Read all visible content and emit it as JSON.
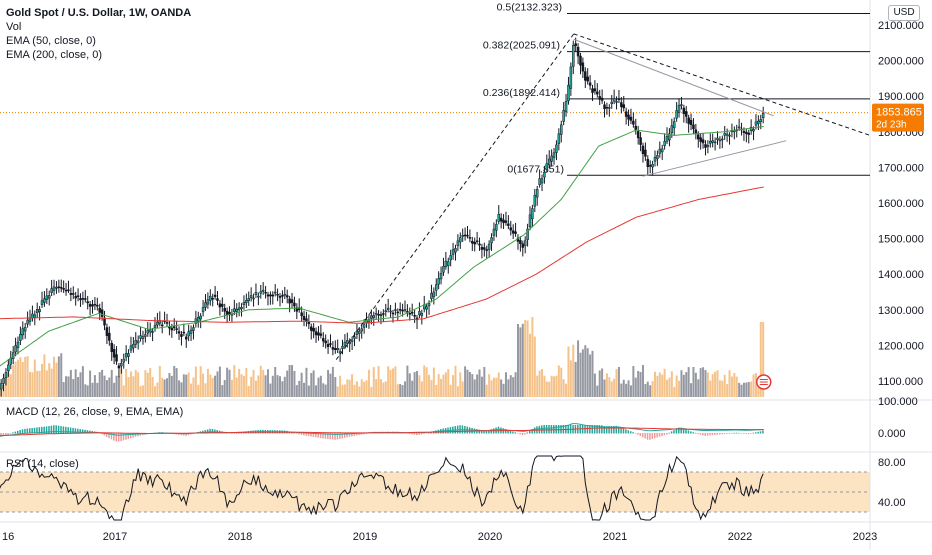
{
  "legend": {
    "title": "Gold Spot / U.S. Dollar, 1W, OANDA",
    "vol": "Vol",
    "ema50": "EMA (50, close, 0)",
    "ema200": "EMA (200, close, 0)"
  },
  "currency": "USD",
  "price_badge": {
    "price": "1853.865",
    "countdown": "2d 23h"
  },
  "macd_label": "MACD (12, 26, close, 9, EMA, EMA)",
  "rsi_label": "RSI (14, close)",
  "colors": {
    "up": "#26a69a",
    "down": "#131722",
    "ema50": "#43a047",
    "ema200": "#e53935",
    "vol_up": "#f5c28a",
    "vol_down": "#9598a1",
    "rsi_band": "#fbd7a6",
    "badge": "#f57c00",
    "macd": "#26a69a",
    "signal": "#e53935"
  },
  "chart_data": {
    "type": "candlestick",
    "title": "Gold Spot / U.S. Dollar, 1W, OANDA",
    "x_tick_labels": [
      "16",
      "2017",
      "2018",
      "2019",
      "2020",
      "2021",
      "2022",
      "2023"
    ],
    "y_ticks": [
      "2100.000",
      "2000.000",
      "1900.000",
      "1800.000",
      "1700.000",
      "1600.000",
      "1500.000",
      "1400.000",
      "1300.000",
      "1200.000",
      "1100.000"
    ],
    "ylim": [
      1045,
      2140
    ],
    "fib_levels": [
      {
        "label": "0.5(2132.323)",
        "value": 2132.323
      },
      {
        "label": "0.382(2025.091)",
        "value": 2025.091
      },
      {
        "label": "0.236(1892.414)",
        "value": 1892.414
      },
      {
        "label": "0(1677.851)",
        "value": 1677.851
      }
    ],
    "price_path": [
      [
        2016.0,
        1080
      ],
      [
        2016.2,
        1250
      ],
      [
        2016.45,
        1365
      ],
      [
        2016.6,
        1340
      ],
      [
        2016.8,
        1305
      ],
      [
        2016.95,
        1140
      ],
      [
        2017.1,
        1210
      ],
      [
        2017.3,
        1265
      ],
      [
        2017.5,
        1225
      ],
      [
        2017.7,
        1340
      ],
      [
        2017.85,
        1285
      ],
      [
        2018.0,
        1330
      ],
      [
        2018.1,
        1350
      ],
      [
        2018.3,
        1340
      ],
      [
        2018.45,
        1270
      ],
      [
        2018.6,
        1210
      ],
      [
        2018.7,
        1180
      ],
      [
        2018.85,
        1230
      ],
      [
        2019.0,
        1290
      ],
      [
        2019.2,
        1300
      ],
      [
        2019.35,
        1280
      ],
      [
        2019.45,
        1330
      ],
      [
        2019.55,
        1410
      ],
      [
        2019.7,
        1510
      ],
      [
        2019.9,
        1470
      ],
      [
        2020.0,
        1560
      ],
      [
        2020.2,
        1480
      ],
      [
        2020.3,
        1640
      ],
      [
        2020.45,
        1750
      ],
      [
        2020.55,
        1900
      ],
      [
        2020.6,
        2060
      ],
      [
        2020.7,
        1940
      ],
      [
        2020.85,
        1870
      ],
      [
        2020.95,
        1890
      ],
      [
        2021.1,
        1800
      ],
      [
        2021.2,
        1700
      ],
      [
        2021.35,
        1780
      ],
      [
        2021.45,
        1880
      ],
      [
        2021.55,
        1810
      ],
      [
        2021.65,
        1760
      ],
      [
        2021.8,
        1790
      ],
      [
        2021.9,
        1810
      ],
      [
        2022.0,
        1800
      ],
      [
        2022.1,
        1840
      ],
      [
        2022.12,
        1853.865
      ]
    ],
    "ema50_path": [
      [
        2016.0,
        1140
      ],
      [
        2016.4,
        1240
      ],
      [
        2016.8,
        1290
      ],
      [
        2017.2,
        1245
      ],
      [
        2017.6,
        1265
      ],
      [
        2018.0,
        1300
      ],
      [
        2018.4,
        1305
      ],
      [
        2018.8,
        1265
      ],
      [
        2019.2,
        1280
      ],
      [
        2019.5,
        1330
      ],
      [
        2019.8,
        1420
      ],
      [
        2020.2,
        1510
      ],
      [
        2020.5,
        1610
      ],
      [
        2020.8,
        1760
      ],
      [
        2021.1,
        1805
      ],
      [
        2021.4,
        1790
      ],
      [
        2021.8,
        1800
      ],
      [
        2022.12,
        1815
      ]
    ],
    "ema200_path": [
      [
        2016.0,
        1275
      ],
      [
        2016.6,
        1280
      ],
      [
        2017.2,
        1270
      ],
      [
        2017.8,
        1265
      ],
      [
        2018.4,
        1268
      ],
      [
        2018.9,
        1262
      ],
      [
        2019.4,
        1275
      ],
      [
        2019.9,
        1330
      ],
      [
        2020.3,
        1400
      ],
      [
        2020.7,
        1490
      ],
      [
        2021.1,
        1560
      ],
      [
        2021.6,
        1610
      ],
      [
        2022.12,
        1645
      ]
    ],
    "volume": {
      "ymax": 100
    },
    "macd": {
      "y_ticks": [
        "100.000",
        "0.000"
      ]
    },
    "rsi": {
      "y_ticks": [
        "80.00",
        "40.00"
      ],
      "band": [
        30,
        70
      ]
    }
  }
}
